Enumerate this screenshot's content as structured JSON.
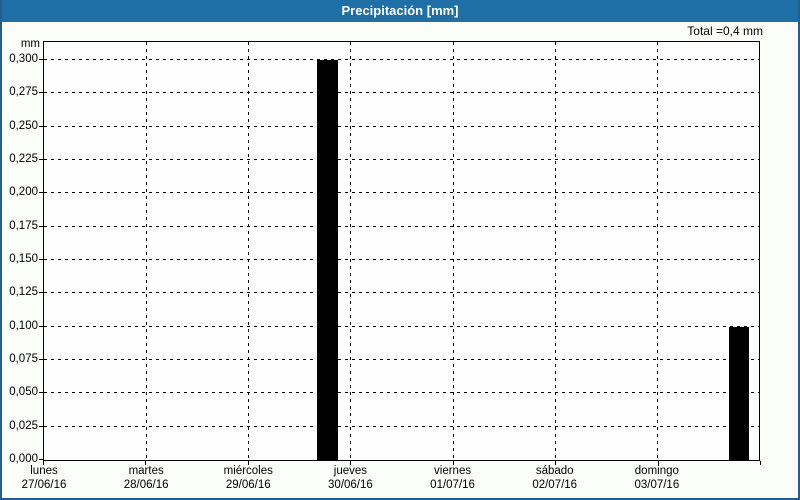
{
  "window": {
    "title": "Precipitación [mm]"
  },
  "header": {
    "total_label": "Total =0,4 mm"
  },
  "axis": {
    "unit_label": "mm"
  },
  "colors": {
    "title_bar_bg": "#1d6fa5",
    "title_text": "#ffffff",
    "frame_border": "#235e90",
    "content_bg": "#fbfdf9",
    "grid": "#000000",
    "bar_fill": "#000000"
  },
  "chart_data": {
    "type": "bar",
    "title": "Precipitación [mm]",
    "ylabel": "mm",
    "ylim": [
      0,
      0.3
    ],
    "y_tick_step": 0.025,
    "y_tick_labels": [
      "0,000",
      "0,025",
      "0,050",
      "0,075",
      "0,100",
      "0,125",
      "0,150",
      "0,175",
      "0,200",
      "0,225",
      "0,250",
      "0,275",
      "0,300"
    ],
    "grid": "dashed",
    "legend": "none",
    "categories": [
      {
        "day": "lunes",
        "date": "27/06/16"
      },
      {
        "day": "martes",
        "date": "28/06/16"
      },
      {
        "day": "miércoles",
        "date": "29/06/16"
      },
      {
        "day": "jueves",
        "date": "30/06/16"
      },
      {
        "day": "viernes",
        "date": "01/07/16"
      },
      {
        "day": "sábado",
        "date": "02/07/16"
      },
      {
        "day": "domingo",
        "date": "03/07/16"
      }
    ],
    "bars": [
      {
        "day": "jueves",
        "date": "30/06/16",
        "value": 0.3,
        "value_label": "0,300",
        "x_frac": 0.382,
        "w_frac": 0.0285
      },
      {
        "day": "domingo",
        "date": "03/07/16",
        "value": 0.1,
        "value_label": "0,100",
        "x_frac": 0.958,
        "w_frac": 0.0285
      }
    ],
    "total_mm": "0,4"
  }
}
